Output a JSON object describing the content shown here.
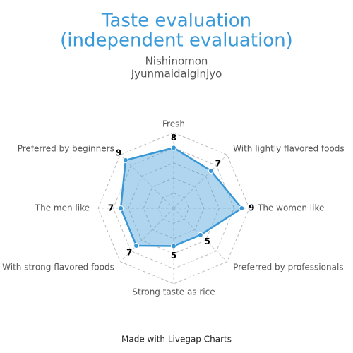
{
  "chart_data": {
    "type": "radar",
    "title": [
      "Taste evaluation",
      "(independent evaluation)"
    ],
    "subtitle": [
      "Nishinomon",
      "Jyunmaidaiginjyo"
    ],
    "categories": [
      "Fresh",
      "With lightly flavored foods",
      "The women like",
      "Preferred by professionals",
      "Strong taste as rice",
      "With strong flavored foods",
      "The men like",
      "Preferred by beginners"
    ],
    "series": [
      {
        "color": "#3a97d6",
        "values": [
          8,
          7,
          9,
          5,
          5,
          7,
          7,
          9
        ]
      }
    ],
    "rlim": [
      0,
      10
    ],
    "rticks": [
      2,
      4,
      6,
      8,
      10
    ],
    "grid": true,
    "footer": "Made with Livegap Charts"
  }
}
